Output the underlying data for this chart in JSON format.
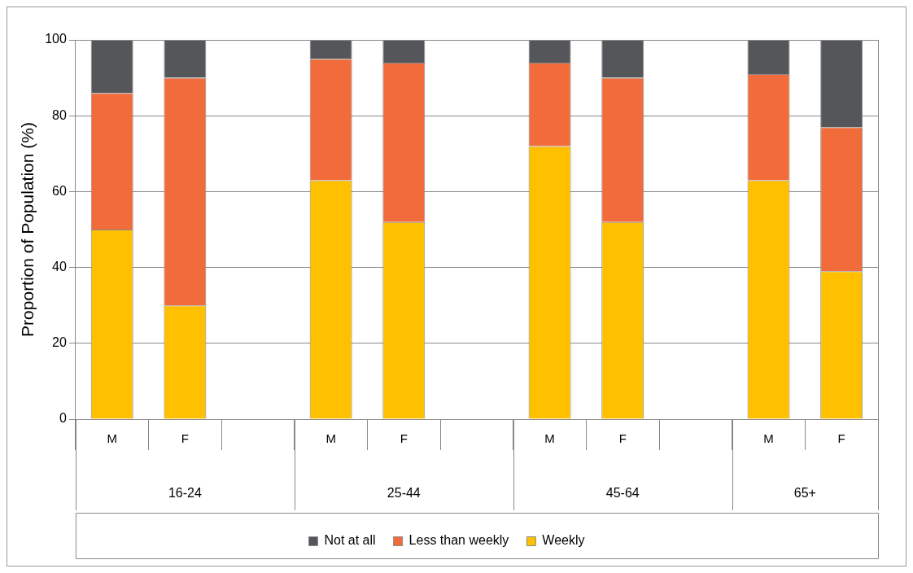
{
  "chart_data": {
    "type": "bar",
    "ylabel": "Proportion of Population (%)",
    "stacked": true,
    "categories": [
      "M",
      "F",
      null,
      "M",
      "F",
      null,
      "M",
      "F",
      null,
      "M",
      "F"
    ],
    "series": [
      {
        "name": "Weekly",
        "color": "#ffc000",
        "values": [
          50,
          30,
          null,
          63,
          52,
          null,
          72,
          52,
          null,
          63,
          39
        ]
      },
      {
        "name": "Less than weekly",
        "color": "#f26b3a",
        "values": [
          36,
          60,
          null,
          32,
          42,
          null,
          22,
          38,
          null,
          28,
          38
        ]
      },
      {
        "name": "Not at all",
        "color": "#55565a",
        "values": [
          14,
          10,
          null,
          5,
          6,
          null,
          6,
          10,
          null,
          9,
          23
        ]
      }
    ],
    "annotations": [
      "16-24",
      "25-44",
      "45-64",
      "65+"
    ],
    "ylim": [
      0,
      100
    ],
    "yticks": [
      0,
      20,
      40,
      60,
      80,
      100
    ],
    "grid": "y",
    "legend": "bottom"
  }
}
